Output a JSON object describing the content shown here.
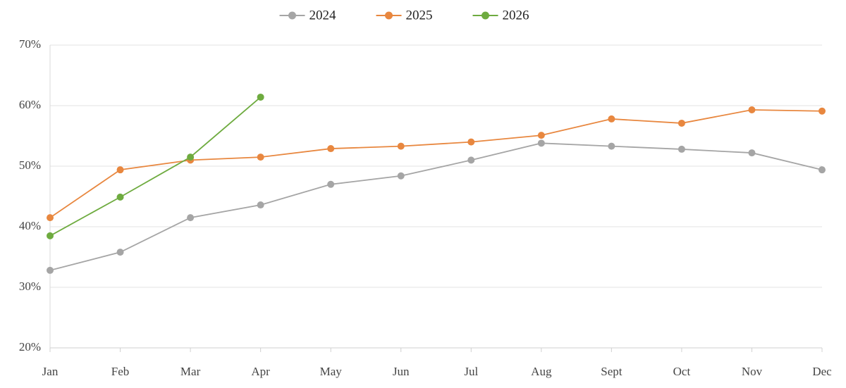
{
  "chart_data": {
    "type": "line",
    "categories": [
      "Jan",
      "Feb",
      "Mar",
      "Apr",
      "May",
      "Jun",
      "Jul",
      "Aug",
      "Sept",
      "Oct",
      "Nov",
      "Dec"
    ],
    "series": [
      {
        "name": "2024",
        "color": "#a5a5a5",
        "values": [
          32.8,
          35.8,
          41.5,
          43.6,
          47,
          48.4,
          51,
          53.8,
          53.3,
          52.8,
          52.2,
          49.4
        ]
      },
      {
        "name": "2025",
        "color": "#e8873f",
        "values": [
          41.5,
          49.4,
          51,
          51.5,
          52.9,
          53.3,
          54,
          55.1,
          57.8,
          57.1,
          59.3,
          59.1
        ]
      },
      {
        "name": "2026",
        "color": "#6eab3f",
        "values": [
          38.5,
          44.9,
          51.5,
          61.4,
          null,
          null,
          null,
          null,
          null,
          null,
          null,
          null
        ]
      }
    ],
    "ylim": [
      20,
      70
    ],
    "yticks": [
      {
        "value": 20,
        "label": "20%"
      },
      {
        "value": 30,
        "label": "30%"
      },
      {
        "value": 40,
        "label": "40%"
      },
      {
        "value": 50,
        "label": "50%"
      },
      {
        "value": 60,
        "label": "60%"
      },
      {
        "value": 70,
        "label": "70%"
      }
    ],
    "grid": true,
    "legend": "top"
  }
}
